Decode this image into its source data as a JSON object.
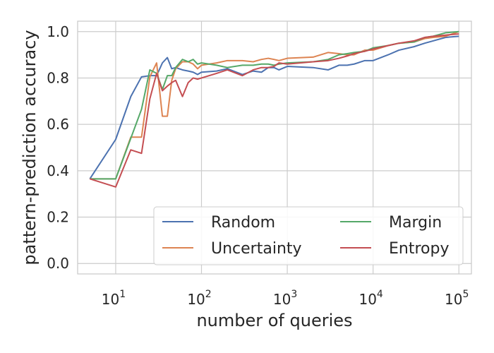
{
  "chart_data": {
    "type": "line",
    "x_scale": "log",
    "xlabel": "number of queries",
    "ylabel": "pattern-prediction accuracy",
    "xlim": [
      3.6,
      140000
    ],
    "ylim": [
      -0.045,
      1.045
    ],
    "grid": true,
    "legend_position": "lower-right",
    "legend_columns": 2,
    "x_ticks": [
      {
        "value": 10,
        "base": "10",
        "exp": "1"
      },
      {
        "value": 100,
        "base": "10",
        "exp": "2"
      },
      {
        "value": 1000,
        "base": "10",
        "exp": "3"
      },
      {
        "value": 10000,
        "base": "10",
        "exp": "4"
      },
      {
        "value": 100000,
        "base": "10",
        "exp": "5"
      }
    ],
    "y_ticks": [
      {
        "value": 0.0,
        "label": "0.0"
      },
      {
        "value": 0.2,
        "label": "0.2"
      },
      {
        "value": 0.4,
        "label": "0.4"
      },
      {
        "value": 0.6,
        "label": "0.6"
      },
      {
        "value": 0.8,
        "label": "0.8"
      },
      {
        "value": 1.0,
        "label": "1.0"
      }
    ],
    "series": [
      {
        "name": "Random",
        "color": "#4c72b0",
        "points": [
          [
            5,
            0.365
          ],
          [
            10,
            0.535
          ],
          [
            15,
            0.72
          ],
          [
            20,
            0.805
          ],
          [
            25,
            0.81
          ],
          [
            30,
            0.81
          ],
          [
            35,
            0.865
          ],
          [
            40,
            0.888
          ],
          [
            45,
            0.84
          ],
          [
            50,
            0.845
          ],
          [
            60,
            0.835
          ],
          [
            70,
            0.83
          ],
          [
            80,
            0.825
          ],
          [
            90,
            0.815
          ],
          [
            100,
            0.825
          ],
          [
            150,
            0.83
          ],
          [
            200,
            0.84
          ],
          [
            300,
            0.815
          ],
          [
            400,
            0.83
          ],
          [
            500,
            0.825
          ],
          [
            600,
            0.845
          ],
          [
            700,
            0.845
          ],
          [
            800,
            0.835
          ],
          [
            1000,
            0.85
          ],
          [
            2000,
            0.845
          ],
          [
            3000,
            0.835
          ],
          [
            4000,
            0.855
          ],
          [
            5000,
            0.855
          ],
          [
            6000,
            0.86
          ],
          [
            8000,
            0.875
          ],
          [
            10000,
            0.875
          ],
          [
            15000,
            0.9
          ],
          [
            20000,
            0.92
          ],
          [
            30000,
            0.935
          ],
          [
            40000,
            0.95
          ],
          [
            50000,
            0.96
          ],
          [
            70000,
            0.975
          ],
          [
            100000,
            0.98
          ]
        ]
      },
      {
        "name": "Uncertainty",
        "color": "#dd8452",
        "points": [
          [
            5,
            0.365
          ],
          [
            10,
            0.365
          ],
          [
            15,
            0.545
          ],
          [
            20,
            0.545
          ],
          [
            25,
            0.805
          ],
          [
            30,
            0.865
          ],
          [
            35,
            0.635
          ],
          [
            40,
            0.635
          ],
          [
            45,
            0.79
          ],
          [
            50,
            0.84
          ],
          [
            60,
            0.87
          ],
          [
            70,
            0.87
          ],
          [
            80,
            0.86
          ],
          [
            90,
            0.84
          ],
          [
            100,
            0.855
          ],
          [
            150,
            0.865
          ],
          [
            200,
            0.875
          ],
          [
            300,
            0.875
          ],
          [
            400,
            0.87
          ],
          [
            500,
            0.88
          ],
          [
            600,
            0.885
          ],
          [
            700,
            0.88
          ],
          [
            800,
            0.875
          ],
          [
            1000,
            0.885
          ],
          [
            2000,
            0.89
          ],
          [
            3000,
            0.91
          ],
          [
            4000,
            0.905
          ],
          [
            5000,
            0.9
          ],
          [
            6000,
            0.9
          ],
          [
            8000,
            0.92
          ],
          [
            10000,
            0.92
          ],
          [
            15000,
            0.94
          ],
          [
            20000,
            0.95
          ],
          [
            30000,
            0.955
          ],
          [
            40000,
            0.97
          ],
          [
            50000,
            0.975
          ],
          [
            70000,
            0.98
          ],
          [
            100000,
            1.0
          ]
        ]
      },
      {
        "name": "Margin",
        "color": "#55a868",
        "points": [
          [
            5,
            0.365
          ],
          [
            10,
            0.365
          ],
          [
            15,
            0.54
          ],
          [
            20,
            0.665
          ],
          [
            25,
            0.835
          ],
          [
            30,
            0.82
          ],
          [
            35,
            0.75
          ],
          [
            40,
            0.81
          ],
          [
            45,
            0.81
          ],
          [
            50,
            0.845
          ],
          [
            60,
            0.88
          ],
          [
            70,
            0.87
          ],
          [
            80,
            0.88
          ],
          [
            90,
            0.86
          ],
          [
            100,
            0.865
          ],
          [
            150,
            0.855
          ],
          [
            200,
            0.845
          ],
          [
            300,
            0.855
          ],
          [
            400,
            0.855
          ],
          [
            500,
            0.86
          ],
          [
            600,
            0.86
          ],
          [
            700,
            0.855
          ],
          [
            800,
            0.86
          ],
          [
            1000,
            0.865
          ],
          [
            2000,
            0.87
          ],
          [
            3000,
            0.88
          ],
          [
            4000,
            0.9
          ],
          [
            5000,
            0.905
          ],
          [
            6000,
            0.91
          ],
          [
            8000,
            0.915
          ],
          [
            10000,
            0.93
          ],
          [
            15000,
            0.94
          ],
          [
            20000,
            0.95
          ],
          [
            30000,
            0.955
          ],
          [
            40000,
            0.975
          ],
          [
            50000,
            0.98
          ],
          [
            70000,
            0.995
          ],
          [
            100000,
            1.0
          ]
        ]
      },
      {
        "name": "Entropy",
        "color": "#c44e52",
        "points": [
          [
            5,
            0.365
          ],
          [
            10,
            0.33
          ],
          [
            15,
            0.49
          ],
          [
            20,
            0.475
          ],
          [
            25,
            0.71
          ],
          [
            30,
            0.82
          ],
          [
            35,
            0.745
          ],
          [
            40,
            0.765
          ],
          [
            45,
            0.78
          ],
          [
            50,
            0.79
          ],
          [
            60,
            0.72
          ],
          [
            70,
            0.78
          ],
          [
            80,
            0.8
          ],
          [
            90,
            0.795
          ],
          [
            100,
            0.8
          ],
          [
            150,
            0.82
          ],
          [
            200,
            0.835
          ],
          [
            300,
            0.81
          ],
          [
            400,
            0.835
          ],
          [
            500,
            0.845
          ],
          [
            600,
            0.845
          ],
          [
            700,
            0.85
          ],
          [
            800,
            0.865
          ],
          [
            1000,
            0.86
          ],
          [
            2000,
            0.87
          ],
          [
            3000,
            0.875
          ],
          [
            4000,
            0.885
          ],
          [
            5000,
            0.895
          ],
          [
            6000,
            0.905
          ],
          [
            8000,
            0.915
          ],
          [
            10000,
            0.925
          ],
          [
            15000,
            0.94
          ],
          [
            20000,
            0.95
          ],
          [
            30000,
            0.96
          ],
          [
            40000,
            0.975
          ],
          [
            50000,
            0.98
          ],
          [
            70000,
            0.985
          ],
          [
            100000,
            0.99
          ]
        ]
      }
    ]
  }
}
